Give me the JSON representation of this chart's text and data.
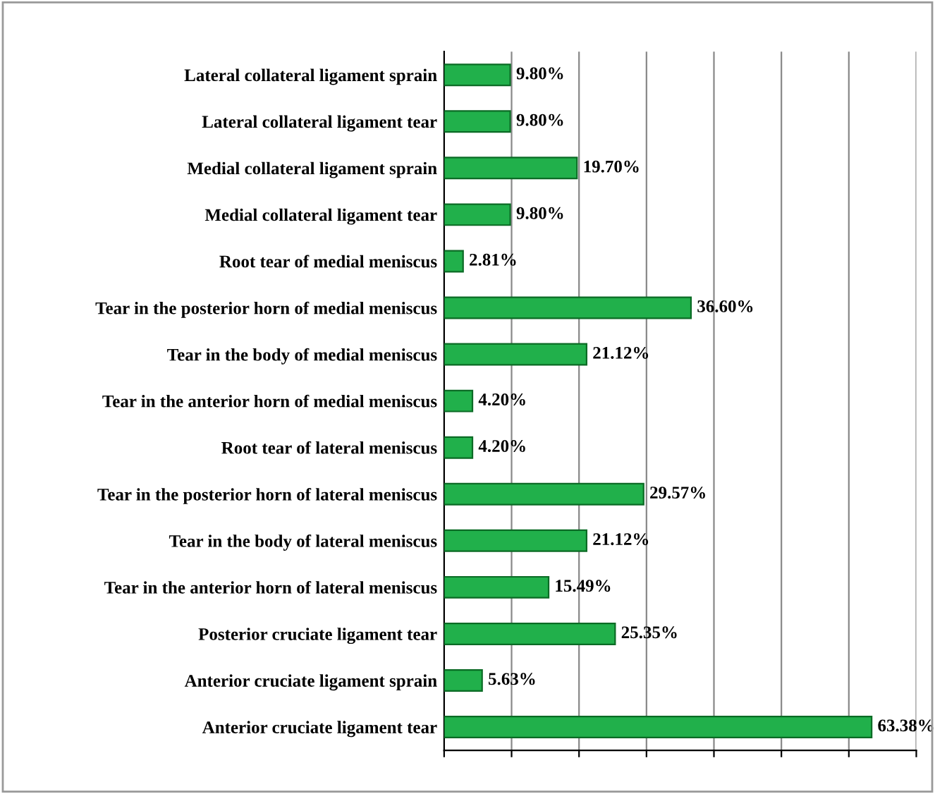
{
  "chart_data": {
    "type": "bar",
    "orientation": "horizontal",
    "categories": [
      "Lateral collateral ligament sprain",
      "Lateral collateral ligament tear",
      "Medial collateral ligament sprain",
      "Medial collateral ligament tear",
      "Root tear of medial meniscus",
      "Tear in the posterior horn of medial meniscus",
      "Tear in the body of medial meniscus",
      "Tear in the anterior horn of medial meniscus",
      "Root tear of lateral meniscus",
      "Tear in the posterior horn of lateral meniscus",
      "Tear in the body of lateral meniscus",
      "Tear in the anterior horn of lateral meniscus",
      "Posterior cruciate ligament tear",
      "Anterior cruciate ligament sprain",
      "Anterior cruciate ligament tear"
    ],
    "values": [
      9.8,
      9.8,
      19.7,
      9.8,
      2.81,
      36.6,
      21.12,
      4.2,
      4.2,
      29.57,
      21.12,
      15.49,
      25.35,
      5.63,
      63.38
    ],
    "value_labels": [
      "9.80%",
      "9.80%",
      "19.70%",
      "9.80%",
      "2.81%",
      "36.60%",
      "21.12%",
      "4.20%",
      "4.20%",
      "29.57%",
      "21.12%",
      "15.49%",
      "25.35%",
      "5.63%",
      "63.38%"
    ],
    "color": "#21b04b",
    "xlim": [
      0,
      70
    ],
    "xticks": [
      {
        "value": 0,
        "label": null
      },
      {
        "value": 10,
        "label": null
      },
      {
        "value": 20,
        "label": null
      },
      {
        "value": 30,
        "label": null
      },
      {
        "value": 40,
        "label": null
      },
      {
        "value": 50,
        "label": null
      },
      {
        "value": 60,
        "label": null
      },
      {
        "value": 70,
        "label": null
      }
    ],
    "grid": "x",
    "tick_labels": "y"
  }
}
